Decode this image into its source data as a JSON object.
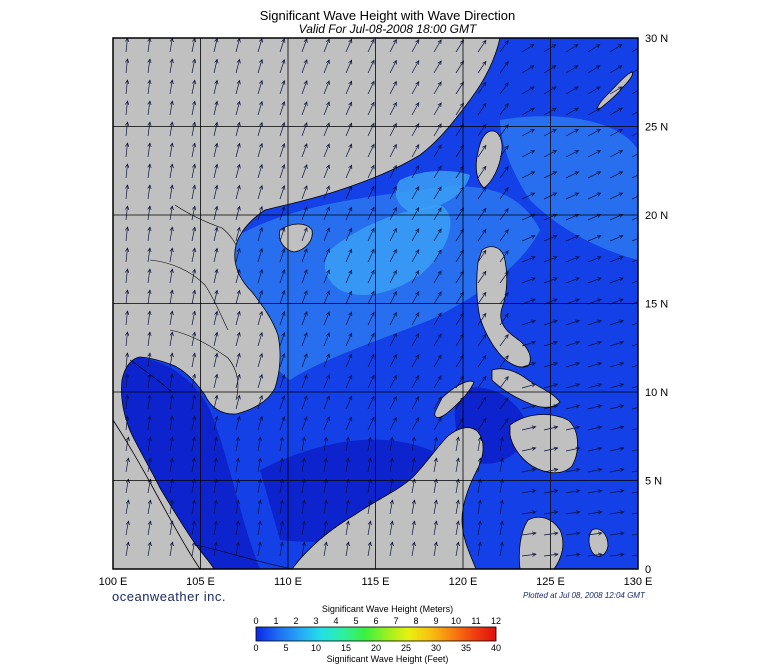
{
  "header": {
    "title": "Significant Wave Height with Wave Direction",
    "subtitle": "Valid For Jul-08-2008 18:00 GMT"
  },
  "axes": {
    "lon_labels": [
      "100 E",
      "105 E",
      "110 E",
      "115 E",
      "120 E",
      "125 E",
      "130 E"
    ],
    "lat_labels": [
      "30 N",
      "25 N",
      "20 N",
      "15 N",
      "10 N",
      "5 N",
      "0"
    ],
    "lon_range": [
      100,
      130
    ],
    "lat_range": [
      0,
      30
    ]
  },
  "footer": {
    "brand": "oceanweather inc.",
    "plotted": "Plotted at Jul 08, 2008 12:04 GMT"
  },
  "colorbar": {
    "title_top": "Significant Wave Height (Meters)",
    "title_bottom": "Significant Wave Height (Feet)",
    "meters_ticks": [
      "0",
      "1",
      "2",
      "3",
      "4",
      "5",
      "6",
      "7",
      "8",
      "9",
      "10",
      "11",
      "12"
    ],
    "feet_ticks": [
      "0",
      "5",
      "10",
      "15",
      "20",
      "25",
      "30",
      "35",
      "40"
    ],
    "colors": [
      "#0a28e6",
      "#1f6cf2",
      "#25a7f5",
      "#22e0e6",
      "#2ef0a0",
      "#3af040",
      "#9af020",
      "#e8f010",
      "#f8c010",
      "#f88010",
      "#f04010",
      "#e01010"
    ]
  },
  "map_colors": {
    "land": "#c0c0c0",
    "sea_base": "#1440e8",
    "sea_light": "#2a78f0",
    "sea_lighter": "#3aa0f5",
    "sea_dark": "#0c1ec8",
    "sea_darkest": "#081060"
  }
}
